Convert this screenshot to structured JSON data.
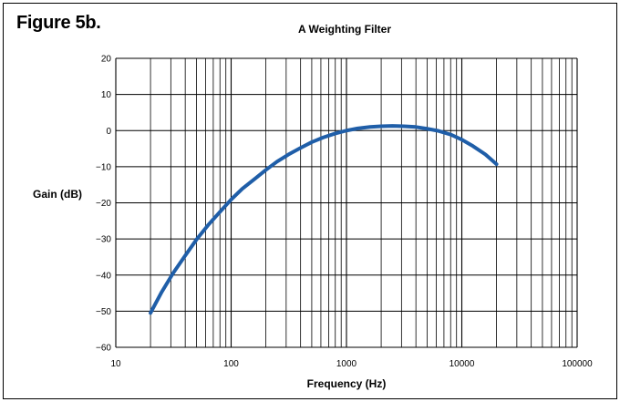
{
  "figure_label": "Figure 5b.",
  "chart_data": {
    "type": "line",
    "title": "A Weighting Filter",
    "xlabel": "Frequency (Hz)",
    "ylabel": "Gain (dB)",
    "x_scale": "log",
    "xlim": [
      10,
      100000
    ],
    "ylim": [
      -60,
      20
    ],
    "grid": true,
    "x_ticks": [
      10,
      100,
      1000,
      10000,
      100000
    ],
    "x_tick_labels": [
      "10",
      "100",
      "1000",
      "10000",
      "100000"
    ],
    "y_ticks": [
      20,
      10,
      0,
      -10,
      -20,
      -30,
      -40,
      -50,
      -60
    ],
    "y_tick_labels": [
      "20",
      "10",
      "0",
      "−10",
      "−20",
      "−30",
      "−40",
      "−50",
      "−60"
    ],
    "line_color": "#1f5ea8",
    "series": [
      {
        "x": [
          20,
          25,
          31.5,
          40,
          50,
          63,
          80,
          100,
          125,
          160,
          200,
          250,
          315,
          400,
          500,
          630,
          800,
          1000,
          1250,
          1600,
          2000,
          2500,
          3150,
          4000,
          5000,
          6300,
          8000,
          10000,
          12500,
          16000,
          20000
        ],
        "y": [
          -50.5,
          -44.7,
          -39.4,
          -34.6,
          -30.2,
          -26.2,
          -22.5,
          -19.1,
          -16.1,
          -13.4,
          -10.9,
          -8.6,
          -6.6,
          -4.8,
          -3.2,
          -1.9,
          -0.8,
          0,
          0.6,
          1.0,
          1.2,
          1.3,
          1.2,
          1.0,
          0.5,
          -0.1,
          -1.1,
          -2.5,
          -4.3,
          -6.6,
          -9.3
        ]
      }
    ]
  }
}
